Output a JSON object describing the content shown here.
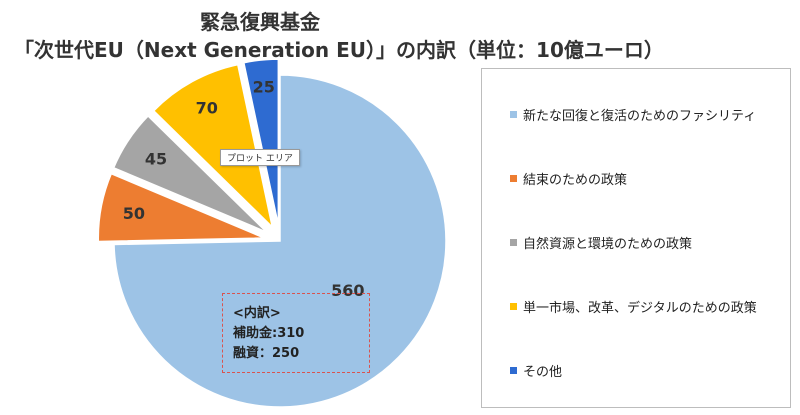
{
  "title_line1": "緊急復興基金",
  "title_line2": "「次世代EU（Next Generation EU）」の内訳（単位：10億ユーロ）",
  "tooltip": "プロット エリア",
  "annotation": {
    "heading": "<内訳>",
    "line1": "補助金:310",
    "line2": "融資：250"
  },
  "chart_data": {
    "type": "pie",
    "title": "緊急復興基金 「次世代EU（Next Generation EU）」の内訳（単位：10億ユーロ）",
    "unit": "10億ユーロ",
    "series": [
      {
        "name": "新たな回復と復活のためのファシリティ",
        "value": 560,
        "label": "560",
        "color": "#9dc3e6"
      },
      {
        "name": "結束のための政策",
        "value": 50,
        "label": "50",
        "color": "#ed7d31"
      },
      {
        "name": "自然資源と環境のための政策",
        "value": 45,
        "label": "45",
        "color": "#a5a5a5"
      },
      {
        "name": "単一市場、改革、デジタルのための政策",
        "value": 70,
        "label": "70",
        "color": "#ffc000"
      },
      {
        "name": "その他",
        "value": 25,
        "label": "25",
        "color": "#2e6bd1"
      }
    ],
    "legend_position": "right"
  }
}
